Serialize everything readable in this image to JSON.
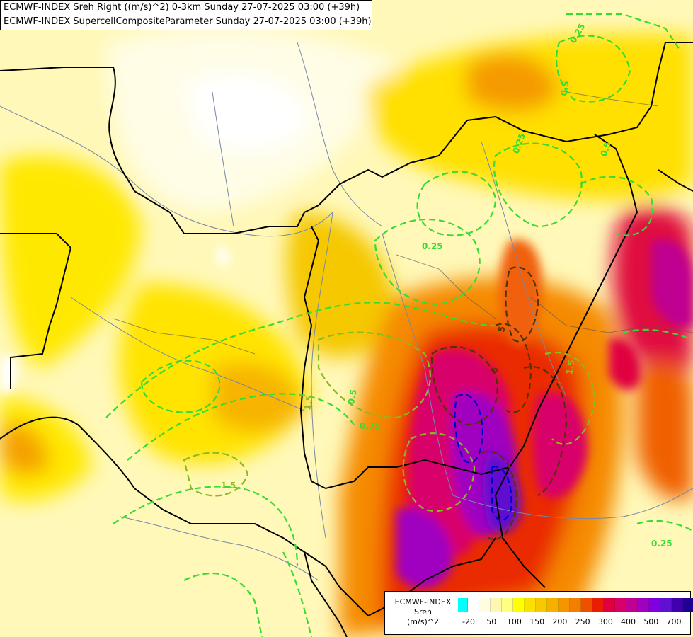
{
  "title": {
    "line1": "ECMWF-INDEX Sreh Right ((m/s)^2) 0-3km Sunday 27-07-2025 03:00 (+39h)",
    "line2": "ECMWF-INDEX SupercellCompositeParameter Sunday 27-07-2025 03:00 (+39h)"
  },
  "legend": {
    "brand": "ECMWF-INDEX",
    "variable": "Sreh",
    "unit": "(m/s)^2",
    "colors": [
      "#00ffff",
      "#ffffff",
      "#fffde0",
      "#fff8b0",
      "#ffff80",
      "#ffff00",
      "#fbe100",
      "#f8c800",
      "#f7b000",
      "#f59600",
      "#f37e00",
      "#ef5000",
      "#e81e00",
      "#e00040",
      "#d8006a",
      "#c00090",
      "#a000c0",
      "#8000e0",
      "#6010d0",
      "#4000b0",
      "#200090"
    ],
    "ticks": [
      "-20",
      "50",
      "100",
      "150",
      "200",
      "250",
      "300",
      "400",
      "500",
      "700"
    ]
  },
  "contour_labels": [
    "0.25",
    "0.5",
    "0.25",
    "0.5",
    "0.25",
    "0.5",
    "0.75",
    "1.5",
    "5",
    "6",
    "1.5",
    "1.5",
    "0.25"
  ],
  "colors": {
    "contour": "#33dd33",
    "contour_mid": "#88bb22",
    "contour_high": "#553300",
    "contour_max": "#0000cc",
    "border": "#000000",
    "river": "#7788aa"
  }
}
